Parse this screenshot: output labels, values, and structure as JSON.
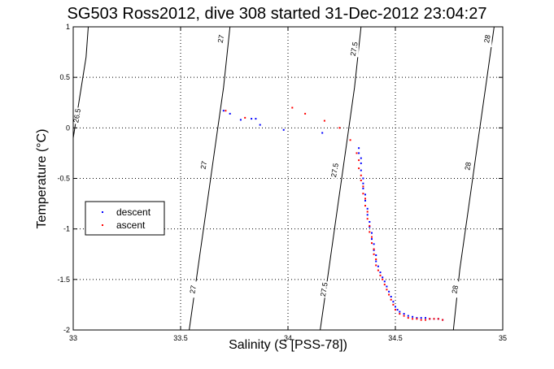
{
  "chart_data": {
    "type": "scatter",
    "title": "SG503 Ross2012, dive 308 started 31-Dec-2012 23:04:27",
    "xlabel": "Salinity (S [PSS-78])",
    "ylabel": "Temperature (°C)",
    "xlim": [
      33,
      35
    ],
    "ylim": [
      -2,
      1
    ],
    "x_ticks": [
      33,
      33.5,
      34,
      34.5,
      35
    ],
    "x_tick_labels": [
      "33",
      "33.5",
      "34",
      "34.5",
      "35"
    ],
    "y_ticks": [
      -2,
      -1.5,
      -1,
      -0.5,
      0,
      0.5,
      1
    ],
    "y_tick_labels": [
      "-2",
      "-1.5",
      "-1",
      "-0.5",
      "0",
      "0.5",
      "1"
    ],
    "grid": true,
    "legend_position": "center-left",
    "contours": [
      {
        "label": "26.5",
        "points": [
          [
            33.0,
            -0.1
          ],
          [
            33.03,
            0.3
          ],
          [
            33.06,
            0.7
          ],
          [
            33.07,
            1.0
          ]
        ],
        "label_at": [
          [
            33.02,
            0.12
          ]
        ]
      },
      {
        "label": "27",
        "points": [
          [
            33.54,
            -2.0
          ],
          [
            33.58,
            -1.4
          ],
          [
            33.62,
            -0.8
          ],
          [
            33.66,
            -0.2
          ],
          [
            33.7,
            0.4
          ],
          [
            33.73,
            1.0
          ]
        ],
        "label_at": [
          [
            33.56,
            -1.6
          ],
          [
            33.61,
            -0.37
          ],
          [
            33.69,
            0.88
          ]
        ]
      },
      {
        "label": "27.5",
        "points": [
          [
            34.15,
            -2.0
          ],
          [
            34.19,
            -1.4
          ],
          [
            34.23,
            -0.8
          ],
          [
            34.27,
            -0.2
          ],
          [
            34.31,
            0.4
          ],
          [
            34.34,
            1.0
          ]
        ],
        "label_at": [
          [
            34.17,
            -1.6
          ],
          [
            34.22,
            -0.42
          ],
          [
            34.31,
            0.78
          ]
        ]
      },
      {
        "label": "28",
        "points": [
          [
            34.77,
            -2.0
          ],
          [
            34.8,
            -1.4
          ],
          [
            34.84,
            -0.8
          ],
          [
            34.88,
            -0.2
          ],
          [
            34.92,
            0.4
          ],
          [
            34.96,
            1.0
          ]
        ],
        "label_at": [
          [
            34.78,
            -1.6
          ],
          [
            34.84,
            -0.38
          ],
          [
            34.93,
            0.88
          ]
        ]
      }
    ],
    "series": [
      {
        "name": "descent",
        "color": "#0000ff",
        "marker": "dot",
        "points": [
          [
            33.7,
            0.17
          ],
          [
            33.73,
            0.14
          ],
          [
            33.78,
            0.08
          ],
          [
            33.83,
            0.09
          ],
          [
            33.85,
            0.09
          ],
          [
            33.87,
            0.03
          ],
          [
            33.98,
            -0.02
          ],
          [
            34.16,
            -0.05
          ],
          [
            34.33,
            -0.2
          ],
          [
            34.33,
            -0.25
          ],
          [
            34.34,
            -0.3
          ],
          [
            34.34,
            -0.35
          ],
          [
            34.34,
            -0.42
          ],
          [
            34.35,
            -0.5
          ],
          [
            34.35,
            -0.55
          ],
          [
            34.35,
            -0.6
          ],
          [
            34.36,
            -0.66
          ],
          [
            34.36,
            -0.72
          ],
          [
            34.37,
            -0.8
          ],
          [
            34.37,
            -0.86
          ],
          [
            34.38,
            -0.93
          ],
          [
            34.38,
            -0.98
          ],
          [
            34.39,
            -1.04
          ],
          [
            34.39,
            -1.1
          ],
          [
            34.4,
            -1.15
          ],
          [
            34.4,
            -1.21
          ],
          [
            34.41,
            -1.26
          ],
          [
            34.41,
            -1.32
          ],
          [
            34.42,
            -1.37
          ],
          [
            34.43,
            -1.43
          ],
          [
            34.44,
            -1.48
          ],
          [
            34.45,
            -1.52
          ],
          [
            34.46,
            -1.57
          ],
          [
            34.47,
            -1.62
          ],
          [
            34.48,
            -1.67
          ],
          [
            34.49,
            -1.72
          ],
          [
            34.5,
            -1.77
          ],
          [
            34.51,
            -1.8
          ],
          [
            34.52,
            -1.82
          ],
          [
            34.54,
            -1.84
          ],
          [
            34.56,
            -1.86
          ],
          [
            34.58,
            -1.87
          ],
          [
            34.6,
            -1.88
          ],
          [
            34.62,
            -1.88
          ],
          [
            34.64,
            -1.88
          ],
          [
            34.66,
            -1.89
          ],
          [
            34.68,
            -1.89
          ],
          [
            34.7,
            -1.89
          ],
          [
            34.72,
            -1.9
          ]
        ]
      },
      {
        "name": "ascent",
        "color": "#ff0000",
        "marker": "dot",
        "points": [
          [
            33.71,
            0.17
          ],
          [
            33.8,
            0.1
          ],
          [
            34.02,
            0.2
          ],
          [
            34.08,
            0.14
          ],
          [
            34.17,
            0.07
          ],
          [
            34.24,
            0.0
          ],
          [
            34.29,
            -0.12
          ],
          [
            34.32,
            -0.25
          ],
          [
            34.33,
            -0.32
          ],
          [
            34.33,
            -0.4
          ],
          [
            34.34,
            -0.47
          ],
          [
            34.34,
            -0.52
          ],
          [
            34.35,
            -0.58
          ],
          [
            34.35,
            -0.65
          ],
          [
            34.36,
            -0.7
          ],
          [
            34.36,
            -0.77
          ],
          [
            34.37,
            -0.83
          ],
          [
            34.37,
            -0.9
          ],
          [
            34.38,
            -0.97
          ],
          [
            34.38,
            -1.03
          ],
          [
            34.39,
            -1.08
          ],
          [
            34.39,
            -1.14
          ],
          [
            34.4,
            -1.2
          ],
          [
            34.4,
            -1.25
          ],
          [
            34.41,
            -1.3
          ],
          [
            34.41,
            -1.36
          ],
          [
            34.42,
            -1.41
          ],
          [
            34.43,
            -1.46
          ],
          [
            34.44,
            -1.5
          ],
          [
            34.45,
            -1.55
          ],
          [
            34.46,
            -1.6
          ],
          [
            34.47,
            -1.65
          ],
          [
            34.48,
            -1.7
          ],
          [
            34.49,
            -1.75
          ],
          [
            34.5,
            -1.8
          ],
          [
            34.52,
            -1.84
          ],
          [
            34.54,
            -1.86
          ],
          [
            34.56,
            -1.88
          ],
          [
            34.58,
            -1.89
          ],
          [
            34.6,
            -1.89
          ],
          [
            34.62,
            -1.9
          ],
          [
            34.64,
            -1.9
          ],
          [
            34.66,
            -1.89
          ],
          [
            34.68,
            -1.89
          ],
          [
            34.7,
            -1.89
          ],
          [
            34.72,
            -1.9
          ]
        ]
      }
    ]
  }
}
